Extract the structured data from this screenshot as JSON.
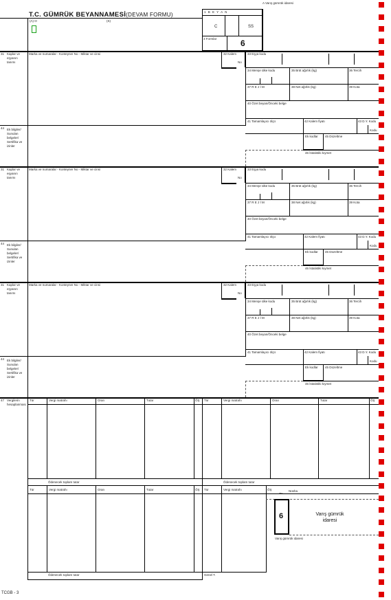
{
  "header": {
    "title_bold": "T.C. GÜMRÜK BEYANNAMESİ",
    "title_rest": "(DEVAM FORMU)",
    "top_right_note": "A Varış gümrük idaresi",
    "a_label": "(A) O",
    "slash_label": "(S)",
    "beyan_label": "1 B E Y A N",
    "beyan_c": "C",
    "beyan_ss": "SS",
    "box6": "6",
    "formlar": "3 Formlar",
    "green_marker": ""
  },
  "blocks": [
    {
      "num31": "31",
      "title31": "Kaplar ve eşyanın tanımı",
      "marks_label": "Marka ve numaralar - Konteyner No - Miktar ve cinsi",
      "k32": "32 Kalem",
      "k32n": "No",
      "k33": "33 Eşya kodu",
      "k34": "34 Menşe ülke kodu",
      "k35": "35 Brüt ağırlık (kg)",
      "k36": "36 Tercih",
      "k37": "37 R E J İ M",
      "k38": "38 Net ağırlık (kg)",
      "k39": "39 Kota",
      "k40": "40 Özet beyan/Önceki belge",
      "k41": "41 Tamamlayıcı ölçü",
      "k42": "42 Kalem fiyatı",
      "k43": "43 D.Y. Kodu",
      "k43b": "Kodu",
      "num44": "44",
      "title44": "Ek bilgiler/ Sunulan belgeler/ Sertifika ve izinler",
      "k44a": "Ek kodlar",
      "k44b": "45 Düzeltme",
      "k46": "46 İstatistiki kıymet"
    },
    {
      "num31": "31",
      "title31": "Kaplar ve eşyanın tanımı",
      "marks_label": "Marka ve numaralar - Konteyner No - Miktar ve cinsi",
      "k32": "32 Kalem",
      "k32n": "No",
      "k33": "33 Eşya kodu",
      "k34": "34 Menşe ülke kodu",
      "k35": "35 Brüt ağırlık (kg)",
      "k36": "36 Tercih",
      "k37": "37 R E J İ M",
      "k38": "38 Net ağırlık (kg)",
      "k39": "39 Kota",
      "k40": "40 Özet beyan/Önceki belge",
      "k41": "41 Tamamlayıcı ölçü",
      "k42": "42 Kalem fiyatı",
      "k43": "43 D.Y. Kodu",
      "k43b": "Kodu",
      "num44": "44",
      "title44": "Ek bilgiler/ Sunulan belgeler/ Sertifika ve izinler",
      "k44a": "Ek kodlar",
      "k44b": "45 Düzeltme",
      "k46": "46 İstatistiki kıymet"
    },
    {
      "num31": "31",
      "title31": "Kaplar ve eşyanın tanımı",
      "marks_label": "Marka ve numaralar - Konteyner No - Miktar ve cinsi",
      "k32": "32 Kalem",
      "k32n": "No",
      "k33": "33 Eşya kodu",
      "k34": "34 Menşe ülke kodu",
      "k35": "35 Brüt ağırlık (kg)",
      "k36": "36 Tercih",
      "k37": "37 R E J İ M",
      "k38": "38 Net ağırlık (kg)",
      "k39": "39 Kota",
      "k40": "40 Özet beyan/Önceki belge",
      "k41": "41 Tamamlayıcı ölçü",
      "k42": "42 Kalem fiyatı",
      "k43": "43 D.Y. Kodu",
      "k43b": "Kodu",
      "num44": "44",
      "title44": "Ek bilgiler/ Sunulan belgeler/ Sertifika ve izinler",
      "k44a": "Ek kodlar",
      "k44b": "45 Düzeltme",
      "k46": "46 İstatistiki kıymet"
    }
  ],
  "tax": {
    "num47": "47",
    "title47": "Vergilerin hesaplanması",
    "cols": [
      "Tür",
      "Vergi matrahı",
      "Oran",
      "Tutar",
      "ÖŞ"
    ],
    "total1": "Ödenecek toplam tutar",
    "total2": "Ödenecek toplam tutar",
    "total3": "Ödenecek toplam tutar",
    "total4": "Genel T."
  },
  "copy": {
    "label_top": "Nüsha",
    "box6": "6",
    "line1": "Varış gümrük",
    "line2": "idaresi",
    "bottom": "Varış gümrük idaresi",
    "nusha": "Nüsha"
  },
  "footer": {
    "code": "TCGB - 3"
  }
}
